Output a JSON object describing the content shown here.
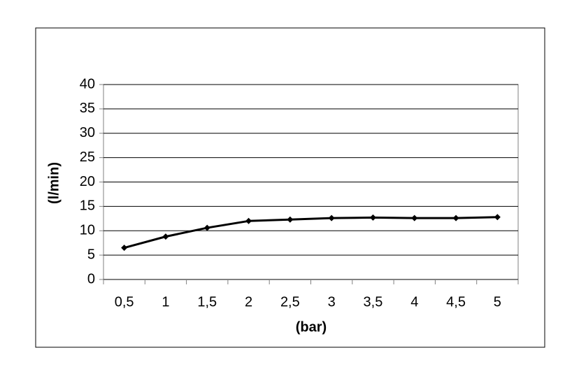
{
  "chart_data": {
    "type": "line",
    "x_label": "(bar)",
    "y_label": "(l/min)",
    "categories": [
      "0,5",
      "1",
      "1,5",
      "2",
      "2,5",
      "3",
      "3,5",
      "4",
      "4,5",
      "5"
    ],
    "series": [
      {
        "color": "#000000",
        "values": [
          6.5,
          8.8,
          10.6,
          12.0,
          12.3,
          12.6,
          12.7,
          12.6,
          12.6,
          12.8
        ]
      }
    ],
    "ylim": [
      0,
      40
    ],
    "yticks": [
      0,
      5,
      10,
      15,
      20,
      25,
      30,
      35,
      40
    ],
    "grid": true
  }
}
